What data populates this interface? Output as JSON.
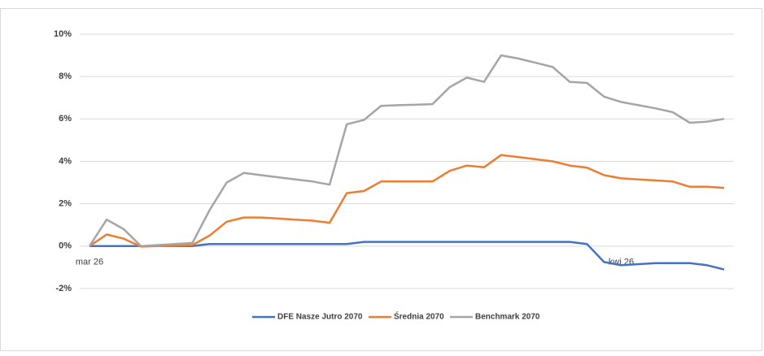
{
  "chart_data": {
    "type": "line",
    "categories": [
      "mar 26",
      null,
      null,
      null,
      null,
      null,
      null,
      null,
      null,
      null,
      null,
      null,
      null,
      null,
      null,
      null,
      null,
      null,
      null,
      null,
      null,
      null,
      null,
      null,
      null,
      null,
      null,
      null,
      null,
      null,
      null,
      "kwi 26",
      null,
      null,
      null,
      null,
      null,
      null
    ],
    "series": [
      {
        "name": "DFE Nasze Jutro 2070",
        "color": "#4472c4",
        "values": [
          0,
          0,
          0,
          0,
          0,
          0,
          0,
          0.1,
          0.1,
          0.1,
          0.1,
          0.1,
          0.1,
          0.1,
          0.1,
          0.1,
          0.2,
          0.2,
          0.2,
          0.2,
          0.2,
          0.2,
          0.2,
          0.2,
          0.2,
          0.2,
          0.2,
          0.2,
          0.2,
          0.1,
          -0.75,
          -0.9,
          -0.85,
          -0.8,
          -0.8,
          -0.8,
          -0.9,
          -1.1
        ]
      },
      {
        "name": "Średnia 2070",
        "color": "#ed7d31",
        "values": [
          0,
          0.55,
          0.35,
          -0.02,
          0,
          0.02,
          0.05,
          0.5,
          1.15,
          1.35,
          1.35,
          1.3,
          1.25,
          1.2,
          1.1,
          2.5,
          2.6,
          3.05,
          3.05,
          3.05,
          3.05,
          3.55,
          3.8,
          3.72,
          4.3,
          4.2,
          4.1,
          4.0,
          3.8,
          3.7,
          3.35,
          3.2,
          3.15,
          3.1,
          3.05,
          2.8,
          2.8,
          2.75
        ]
      },
      {
        "name": "Benchmark 2070",
        "color": "#a5a5a5",
        "values": [
          0,
          1.25,
          0.8,
          0,
          0.05,
          0.1,
          0.15,
          1.7,
          3.0,
          3.45,
          3.35,
          3.25,
          3.15,
          3.05,
          2.9,
          5.75,
          5.95,
          6.62,
          6.65,
          6.67,
          6.7,
          7.5,
          7.95,
          7.75,
          9.0,
          8.85,
          8.65,
          8.45,
          7.75,
          7.7,
          7.05,
          6.8,
          6.65,
          6.5,
          6.32,
          5.82,
          5.87,
          6.0
        ]
      }
    ],
    "ylim": [
      -2,
      10
    ],
    "yticks": [
      {
        "value": -2,
        "label": "-2%"
      },
      {
        "value": 0,
        "label": "0%"
      },
      {
        "value": 2,
        "label": "2%"
      },
      {
        "value": 4,
        "label": "4%"
      },
      {
        "value": 6,
        "label": "6%"
      },
      {
        "value": 8,
        "label": "8%"
      },
      {
        "value": 10,
        "label": "10%"
      }
    ],
    "grid": true,
    "legend": "bottom"
  }
}
